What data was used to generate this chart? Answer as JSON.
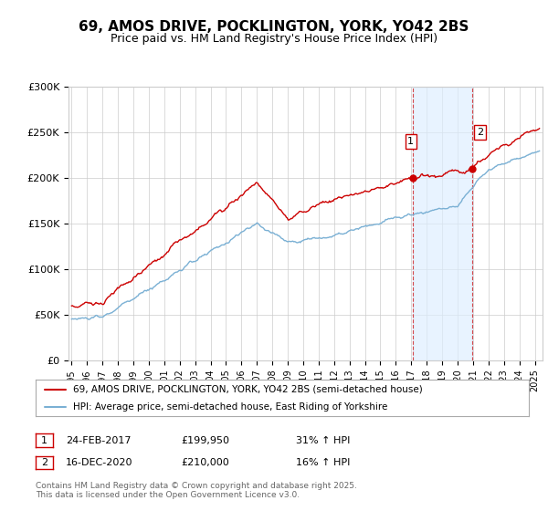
{
  "title": "69, AMOS DRIVE, POCKLINGTON, YORK, YO42 2BS",
  "subtitle": "Price paid vs. HM Land Registry's House Price Index (HPI)",
  "ylabel_ticks": [
    "£0",
    "£50K",
    "£100K",
    "£150K",
    "£200K",
    "£250K",
    "£300K"
  ],
  "ylim": [
    0,
    300000
  ],
  "xlim_start": 1994.8,
  "xlim_end": 2025.5,
  "red_color": "#cc0000",
  "blue_color": "#7ab0d4",
  "sale1_date": 2017.12,
  "sale1_price": 199950,
  "sale2_date": 2020.96,
  "sale2_price": 210000,
  "legend_line1": "69, AMOS DRIVE, POCKLINGTON, YORK, YO42 2BS (semi-detached house)",
  "legend_line2": "HPI: Average price, semi-detached house, East Riding of Yorkshire",
  "footer": "Contains HM Land Registry data © Crown copyright and database right 2025.\nThis data is licensed under the Open Government Licence v3.0.",
  "bg_color": "#ffffff",
  "plot_bg": "#ffffff",
  "grid_color": "#cccccc",
  "shade_color": "#ddeeff"
}
